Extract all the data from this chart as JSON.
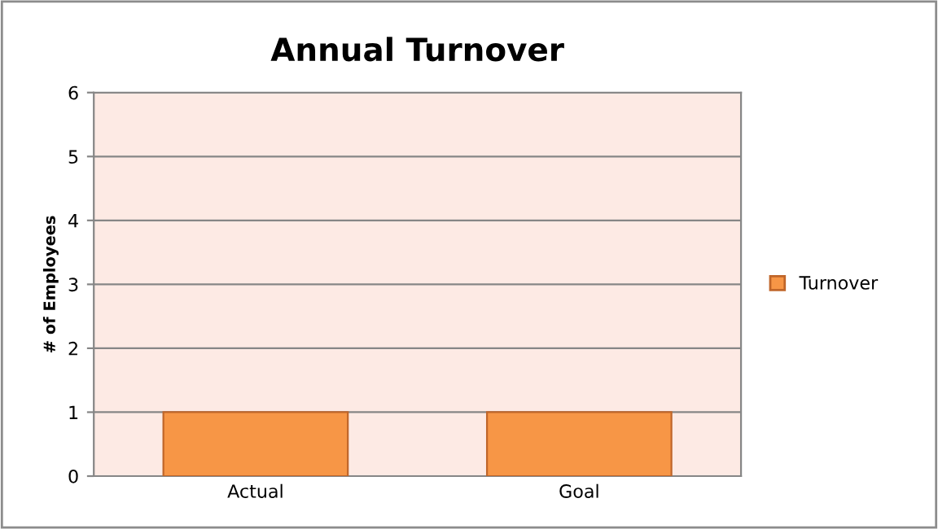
{
  "chart_data": {
    "type": "bar",
    "title": "Annual Turnover",
    "ylabel": "# of Employees",
    "categories": [
      "Actual",
      "Goal"
    ],
    "series": [
      {
        "name": "Turnover",
        "color": "#f79646",
        "values": [
          1,
          1
        ]
      }
    ],
    "ylim": [
      0,
      6
    ],
    "yticks": [
      0,
      1,
      2,
      3,
      4,
      5,
      6
    ],
    "grid": "y",
    "legend": "right"
  }
}
